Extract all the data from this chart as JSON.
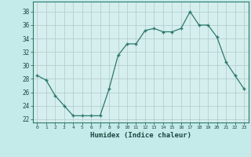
{
  "x": [
    0,
    1,
    2,
    3,
    4,
    5,
    6,
    7,
    8,
    9,
    10,
    11,
    12,
    13,
    14,
    15,
    16,
    17,
    18,
    19,
    20,
    21,
    22,
    23
  ],
  "y": [
    28.5,
    27.8,
    25.5,
    24.0,
    22.5,
    22.5,
    22.5,
    22.5,
    26.5,
    31.5,
    33.2,
    33.2,
    35.2,
    35.5,
    35.0,
    35.0,
    35.5,
    38.0,
    36.0,
    36.0,
    34.2,
    30.5,
    28.5,
    26.5
  ],
  "xlabel": "Humidex (Indice chaleur)",
  "ylim": [
    21.5,
    39.5
  ],
  "xlim": [
    -0.5,
    23.5
  ],
  "yticks": [
    22,
    24,
    26,
    28,
    30,
    32,
    34,
    36,
    38
  ],
  "xticks": [
    0,
    1,
    2,
    3,
    4,
    5,
    6,
    7,
    8,
    9,
    10,
    11,
    12,
    13,
    14,
    15,
    16,
    17,
    18,
    19,
    20,
    21,
    22,
    23
  ],
  "line_color": "#2d7a6a",
  "bg_color": "#c5eaea",
  "grid_color": "#b0c8c8",
  "plot_bg_color": "#d5eeee"
}
